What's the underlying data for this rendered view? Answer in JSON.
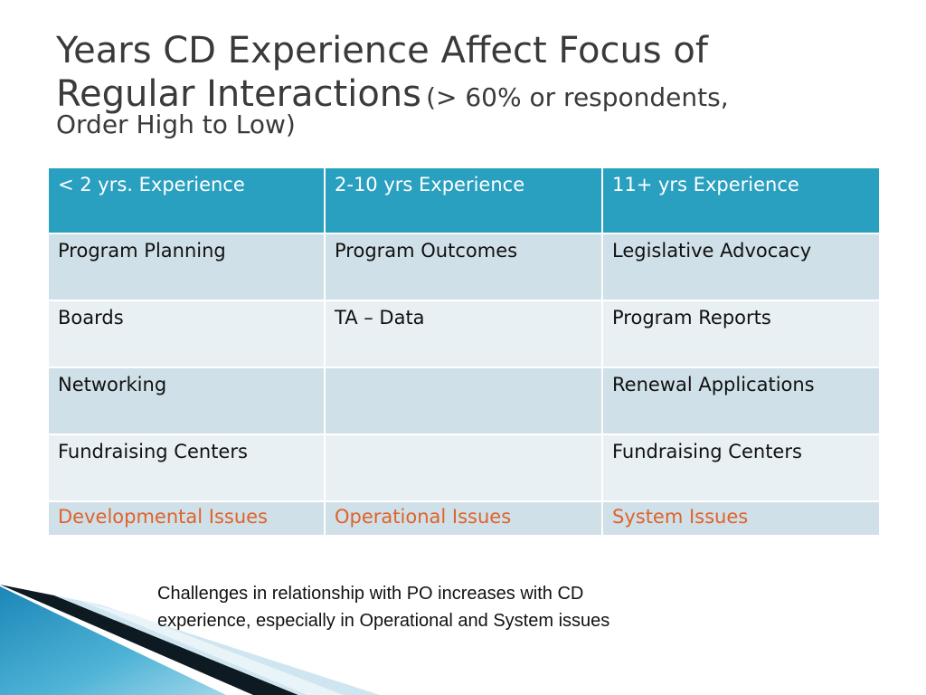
{
  "slide": {
    "title_main_line1": "Years CD Experience Affect Focus of",
    "title_main_line2": "Regular Interactions",
    "title_sub_line2": "(> 60% or respondents,",
    "title_sub_line3": "Order High to Low)"
  },
  "table": {
    "headers": [
      "< 2 yrs. Experience",
      "2-10 yrs Experience",
      "11+ yrs Experience"
    ],
    "rows": [
      [
        "Program Planning",
        "Program Outcomes",
        "Legislative Advocacy"
      ],
      [
        "Boards",
        "TA – Data",
        "Program Reports"
      ],
      [
        "Networking",
        "",
        "Renewal Applications"
      ],
      [
        "Fundraising Centers",
        "",
        "Fundraising Centers"
      ]
    ],
    "issues_row": [
      "Developmental Issues",
      "Operational Issues",
      "System Issues"
    ]
  },
  "note": {
    "line1": "Challenges in relationship with PO increases with CD",
    "line2": "experience, especially in Operational and System issues"
  },
  "colors": {
    "header_bg": "#2aa0c0",
    "row_odd_bg": "#cfe0e8",
    "row_even_bg": "#e8f0f4",
    "issues_text": "#e0622a",
    "title_text": "#3a3a3a"
  }
}
